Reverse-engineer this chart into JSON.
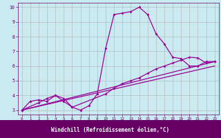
{
  "title": "",
  "xlabel": "Windchill (Refroidissement éolien,°C)",
  "bg_color": "#c8eaf0",
  "line_color": "#990099",
  "axis_color": "#660066",
  "grid_color": "#b0b0b0",
  "xlabel_bg": "#660066",
  "xlabel_fg": "#ffffff",
  "xlim": [
    -0.5,
    23.5
  ],
  "ylim": [
    2.7,
    10.3
  ],
  "xticks": [
    0,
    1,
    2,
    3,
    4,
    5,
    6,
    7,
    8,
    9,
    10,
    11,
    12,
    13,
    14,
    15,
    16,
    17,
    18,
    19,
    20,
    21,
    22,
    23
  ],
  "yticks": [
    3,
    4,
    5,
    6,
    7,
    8,
    9,
    10
  ],
  "series": [
    {
      "x": [
        0,
        1,
        2,
        3,
        4,
        5,
        6,
        7,
        8,
        9,
        10,
        11,
        12,
        13,
        14,
        15,
        16,
        17,
        18,
        19,
        20,
        21,
        22,
        23
      ],
      "y": [
        3.0,
        3.6,
        3.7,
        3.6,
        4.0,
        3.8,
        3.2,
        3.0,
        3.3,
        4.1,
        7.2,
        9.5,
        9.6,
        9.7,
        10.0,
        9.5,
        8.2,
        7.5,
        6.6,
        6.5,
        6.0,
        6.0,
        6.3,
        6.3
      ]
    },
    {
      "x": [
        0,
        2,
        3,
        4,
        5,
        6,
        10,
        11,
        12,
        13,
        14,
        15,
        16,
        17,
        18,
        19,
        20,
        21,
        22,
        23
      ],
      "y": [
        3.0,
        3.5,
        3.8,
        4.0,
        3.6,
        3.2,
        4.1,
        4.5,
        4.8,
        5.0,
        5.2,
        5.5,
        5.8,
        6.0,
        6.2,
        6.4,
        6.6,
        6.55,
        6.2,
        6.3
      ]
    },
    {
      "x": [
        0,
        23
      ],
      "y": [
        3.0,
        6.3
      ]
    },
    {
      "x": [
        0,
        23
      ],
      "y": [
        3.0,
        6.0
      ]
    }
  ]
}
